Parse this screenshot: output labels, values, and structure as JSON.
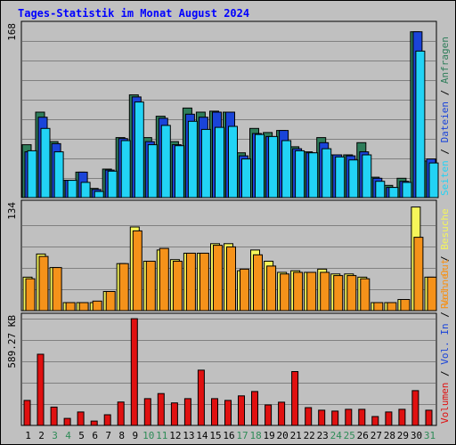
{
  "page": {
    "title": "Tages-Statistik im Monat August 2024"
  },
  "colors": {
    "anfragen": "#2e7d5a",
    "dateien": "#1a44d9",
    "seiten": "#22d3f5",
    "besuche": "#f5f55a",
    "rechner": "#f5921a",
    "volumen": "#e01010",
    "weekday_label": "#000000",
    "weekend_label": "#2e8b57",
    "background": "#c0c0c0"
  },
  "chart_data": [
    {
      "type": "bar",
      "categories": [
        "1",
        "2",
        "3",
        "4",
        "5",
        "6",
        "7",
        "8",
        "9",
        "10",
        "11",
        "12",
        "13",
        "14",
        "15",
        "16",
        "17",
        "18",
        "19",
        "20",
        "21",
        "22",
        "23",
        "24",
        "25",
        "26",
        "27",
        "28",
        "29",
        "30",
        "31"
      ],
      "weekend_days": [
        "3",
        "4",
        "10",
        "11",
        "17",
        "18",
        "24",
        "25",
        "31"
      ],
      "max_label": "168",
      "ylim": [
        0,
        168
      ],
      "series": [
        {
          "name": "Anfragen",
          "values": [
            52,
            84,
            55,
            17,
            25,
            9,
            28,
            59,
            101,
            59,
            80,
            55,
            88,
            84,
            85,
            84,
            44,
            68,
            64,
            66,
            50,
            45,
            59,
            42,
            42,
            54,
            20,
            12,
            19,
            163,
            36
          ]
        },
        {
          "name": "Dateien",
          "values": [
            45,
            79,
            53,
            17,
            25,
            8,
            27,
            58,
            99,
            55,
            78,
            52,
            82,
            79,
            84,
            84,
            41,
            63,
            60,
            66,
            48,
            44,
            54,
            42,
            41,
            45,
            19,
            10,
            16,
            163,
            38
          ]
        },
        {
          "name": "Seiten",
          "values": [
            46,
            68,
            45,
            17,
            15,
            6,
            26,
            56,
            94,
            52,
            71,
            51,
            75,
            67,
            69,
            70,
            38,
            62,
            60,
            56,
            46,
            44,
            48,
            40,
            37,
            42,
            16,
            10,
            15,
            144,
            34
          ]
        }
      ],
      "right_labels": [
        "Anfragen",
        "Dateien",
        "Seiten"
      ]
    },
    {
      "type": "bar",
      "categories": [
        "1",
        "2",
        "3",
        "4",
        "5",
        "6",
        "7",
        "8",
        "9",
        "10",
        "11",
        "12",
        "13",
        "14",
        "15",
        "16",
        "17",
        "18",
        "19",
        "20",
        "21",
        "22",
        "23",
        "24",
        "25",
        "26",
        "27",
        "28",
        "29",
        "30",
        "31"
      ],
      "max_label": "134",
      "ylim": [
        0,
        134
      ],
      "series": [
        {
          "name": "Besuche",
          "values": [
            42,
            71,
            54,
            10,
            10,
            10,
            24,
            59,
            105,
            62,
            76,
            64,
            72,
            72,
            84,
            84,
            50,
            76,
            62,
            48,
            50,
            48,
            52,
            46,
            46,
            42,
            10,
            10,
            14,
            130,
            42
          ]
        },
        {
          "name": "Rechner",
          "values": [
            40,
            68,
            54,
            10,
            10,
            12,
            24,
            59,
            100,
            62,
            78,
            62,
            72,
            72,
            82,
            80,
            52,
            70,
            56,
            46,
            48,
            48,
            48,
            44,
            44,
            40,
            10,
            10,
            14,
            92,
            42
          ]
        }
      ],
      "right_labels": [
        "Besuche",
        "Rechner"
      ]
    },
    {
      "type": "bar",
      "categories": [
        "1",
        "2",
        "3",
        "4",
        "5",
        "6",
        "7",
        "8",
        "9",
        "10",
        "11",
        "12",
        "13",
        "14",
        "15",
        "16",
        "17",
        "18",
        "19",
        "20",
        "21",
        "22",
        "23",
        "24",
        "25",
        "26",
        "27",
        "28",
        "29",
        "30",
        "31"
      ],
      "max_label": "589.27 KB",
      "ylim": [
        0,
        589.27
      ],
      "series": [
        {
          "name": "Volumen",
          "values": [
            138,
            393,
            101,
            39,
            74,
            24,
            59,
            129,
            589,
            148,
            176,
            124,
            148,
            305,
            148,
            138,
            163,
            187,
            113,
            128,
            297,
            98,
            84,
            79,
            89,
            89,
            49,
            74,
            89,
            192,
            84
          ]
        }
      ],
      "right_labels": [
        "Volumen",
        "Vol. In",
        "Vol. Out"
      ]
    }
  ]
}
